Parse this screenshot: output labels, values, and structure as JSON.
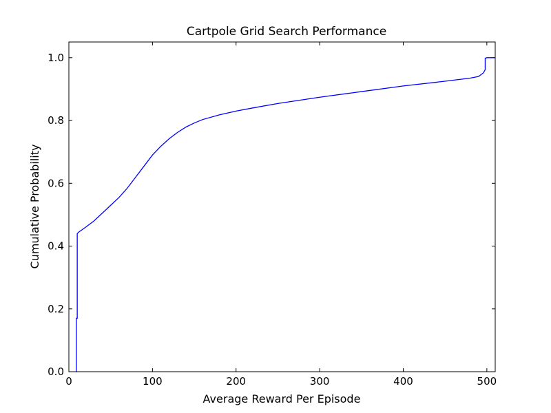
{
  "chart_data": {
    "type": "line",
    "title": "Cartpole Grid Search Performance",
    "xlabel": "Average Reward Per Episode",
    "ylabel": "Cumulative Probability",
    "xlim": [
      0,
      510
    ],
    "ylim": [
      0,
      1.05
    ],
    "xticks": [
      0,
      100,
      200,
      300,
      400,
      500
    ],
    "xtick_labels": [
      "0",
      "100",
      "200",
      "300",
      "400",
      "500"
    ],
    "yticks": [
      0.0,
      0.2,
      0.4,
      0.6,
      0.8,
      1.0
    ],
    "ytick_labels": [
      "0.0",
      "0.2",
      "0.4",
      "0.6",
      "0.8",
      "1.0"
    ],
    "grid": false,
    "series": [
      {
        "color": "#0000ff",
        "x": [
          8,
          9,
          9,
          10,
          10,
          12,
          20,
          30,
          40,
          50,
          60,
          70,
          80,
          90,
          100,
          110,
          120,
          130,
          140,
          150,
          160,
          180,
          200,
          220,
          250,
          300,
          350,
          400,
          450,
          480,
          490,
          492,
          494,
          496,
          498,
          498,
          500,
          510
        ],
        "y": [
          0.0,
          0.0,
          0.17,
          0.17,
          0.44,
          0.445,
          0.46,
          0.48,
          0.505,
          0.53,
          0.555,
          0.585,
          0.62,
          0.655,
          0.69,
          0.718,
          0.742,
          0.762,
          0.779,
          0.792,
          0.803,
          0.818,
          0.83,
          0.84,
          0.854,
          0.874,
          0.892,
          0.91,
          0.925,
          0.935,
          0.94,
          0.944,
          0.948,
          0.952,
          0.962,
          0.998,
          1.0,
          1.0
        ]
      }
    ]
  }
}
